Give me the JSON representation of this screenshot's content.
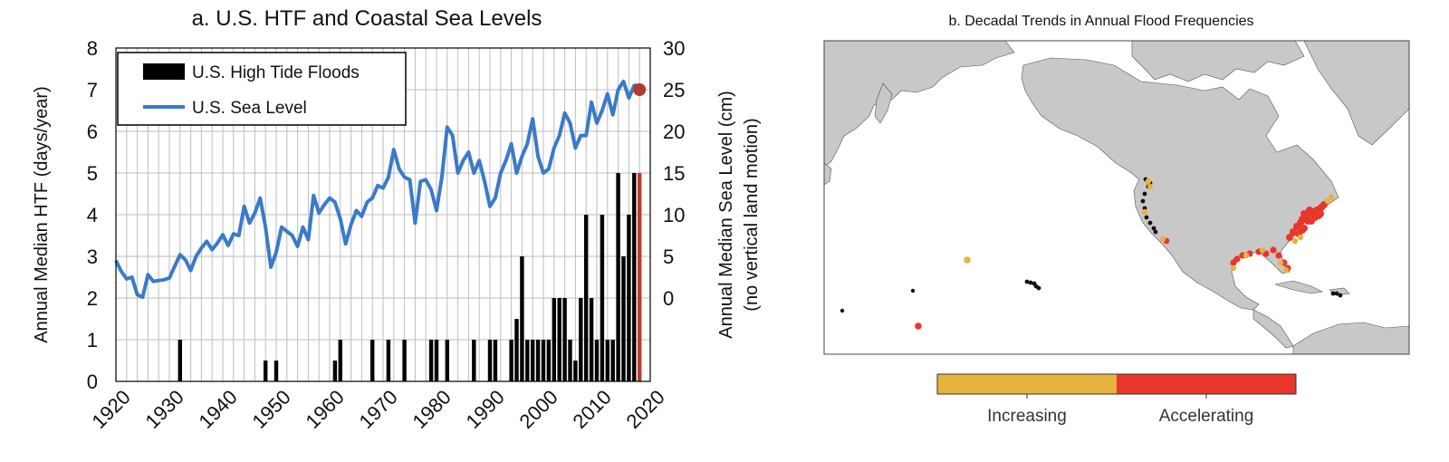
{
  "panel_a": {
    "title": "a. U.S. HTF and Coastal Sea Levels",
    "ylabel_left": "Annual Median HTF (days/year)",
    "ylabel_right_line1": "Annual Median Sea Level  (cm)",
    "ylabel_right_line2": "(no vertical land motion)",
    "legend": {
      "bars": "U.S. High Tide Floods",
      "line": "U.S. Sea Level"
    }
  },
  "panel_b": {
    "title": "b. Decadal Trends in Annual Flood Frequencies",
    "colorbar": {
      "labels": [
        "Increasing",
        "Accelerating"
      ],
      "colors": [
        "#e7b23f",
        "#e8372a"
      ]
    },
    "colors": {
      "land": "#c8c8c8",
      "ocean": "#ffffff",
      "stable": "#111111",
      "increasing": "#e7b23f",
      "accelerating": "#e8372a"
    }
  },
  "chart_data": [
    {
      "type": "bar",
      "title": "a. U.S. HTF and Coastal Sea Levels",
      "xlabel": "",
      "ylabel": "Annual Median HTF (days/year)",
      "xlim": [
        1920,
        2020
      ],
      "ylim": [
        0,
        8
      ],
      "xticks": [
        1920,
        1930,
        1940,
        1950,
        1960,
        1970,
        1980,
        1990,
        2000,
        2010,
        2020
      ],
      "yticks": [
        0,
        1,
        2,
        3,
        4,
        5,
        6,
        7,
        8
      ],
      "grid": true,
      "legend": "top-left",
      "colors": {
        "bars": "#000000",
        "highlight_bar": "#c0392b",
        "line": "#3a7ac9",
        "point": "#b03a2e"
      },
      "series": [
        {
          "name": "U.S. High Tide Floods",
          "x": [
            1932,
            1948,
            1950,
            1961,
            1962,
            1968,
            1971,
            1974,
            1979,
            1980,
            1982,
            1987,
            1990,
            1991,
            1994,
            1995,
            1996,
            1997,
            1998,
            1999,
            2000,
            2001,
            2002,
            2003,
            2004,
            2005,
            2006,
            2007,
            2008,
            2009,
            2010,
            2011,
            2012,
            2013,
            2014,
            2015,
            2016,
            2017,
            2018
          ],
          "values": [
            1,
            0.5,
            0.5,
            0.5,
            1,
            1,
            1,
            1,
            1,
            1,
            1,
            1,
            1,
            1,
            1,
            1.5,
            3,
            1,
            1,
            1,
            1,
            1,
            2,
            2,
            2,
            1,
            0.5,
            2,
            4,
            2,
            1,
            4,
            1,
            1,
            5,
            3,
            4,
            5,
            5
          ]
        },
        {
          "name": "U.S. Sea Level",
          "axis": "right",
          "ylim": [
            -10,
            30
          ],
          "yticks": [
            0,
            5,
            10,
            15,
            20,
            25,
            30
          ],
          "x": [
            1920,
            1921,
            1922,
            1923,
            1924,
            1925,
            1926,
            1927,
            1928,
            1929,
            1930,
            1931,
            1932,
            1933,
            1934,
            1935,
            1936,
            1937,
            1938,
            1939,
            1940,
            1941,
            1942,
            1943,
            1944,
            1945,
            1946,
            1947,
            1948,
            1949,
            1950,
            1951,
            1952,
            1953,
            1954,
            1955,
            1956,
            1957,
            1958,
            1959,
            1960,
            1961,
            1962,
            1963,
            1964,
            1965,
            1966,
            1967,
            1968,
            1969,
            1970,
            1971,
            1972,
            1973,
            1974,
            1975,
            1976,
            1977,
            1978,
            1979,
            1980,
            1981,
            1982,
            1983,
            1984,
            1985,
            1986,
            1987,
            1988,
            1989,
            1990,
            1991,
            1992,
            1993,
            1994,
            1995,
            1996,
            1997,
            1998,
            1999,
            2000,
            2001,
            2002,
            2003,
            2004,
            2005,
            2006,
            2007,
            2008,
            2009,
            2010,
            2011,
            2012,
            2013,
            2014,
            2015,
            2016,
            2017,
            2018
          ],
          "values": [
            4.5,
            3.2,
            2.3,
            2.5,
            0.4,
            0.1,
            2.8,
            2.0,
            2.1,
            2.2,
            2.4,
            3.8,
            5.2,
            4.6,
            3.3,
            5.0,
            6.0,
            6.8,
            5.8,
            6.6,
            7.6,
            6.3,
            7.7,
            7.5,
            11.0,
            9.0,
            10.2,
            12.0,
            8.5,
            3.7,
            5.5,
            8.5,
            8.0,
            7.5,
            6.2,
            8.5,
            7.0,
            12.3,
            10.2,
            11.2,
            12.0,
            11.5,
            9.5,
            6.5,
            8.8,
            10.5,
            9.8,
            11.5,
            12.0,
            13.5,
            13.2,
            14.5,
            17.8,
            15.5,
            14.5,
            14.2,
            9.0,
            14.0,
            14.2,
            13.0,
            10.5,
            14.5,
            20.5,
            19.5,
            15.0,
            16.5,
            17.5,
            15.0,
            16.5,
            14.0,
            11.0,
            12.0,
            15.0,
            16.5,
            18.5,
            15.0,
            17.0,
            18.5,
            21.5,
            17.0,
            15.0,
            15.5,
            18.0,
            19.5,
            22.2,
            21.0,
            18.0,
            19.5,
            19.5,
            23.5,
            21.0,
            22.5,
            24.5,
            22.0,
            25.0,
            26.0,
            24.0,
            25.5,
            25.5
          ]
        }
      ],
      "annotations": [
        {
          "x": 2018,
          "y_right": 25,
          "type": "point"
        }
      ]
    },
    {
      "type": "map",
      "title": "b. Decadal Trends in Annual Flood Frequencies",
      "categories": [
        "Increasing",
        "Accelerating"
      ],
      "colors": [
        "#e7b23f",
        "#e8372a"
      ]
    }
  ]
}
